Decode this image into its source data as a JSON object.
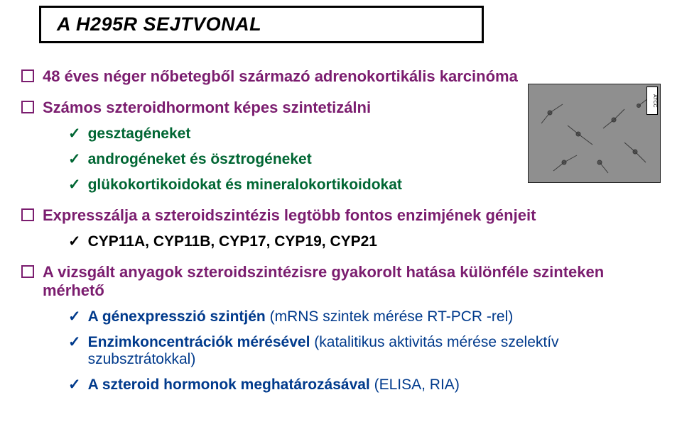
{
  "colors": {
    "title": "#000000",
    "purple": "#7b1d6f",
    "green": "#006633",
    "blue": "#003a8c",
    "black": "#000000"
  },
  "fonts": {
    "title_size": 27,
    "l1_size": 22,
    "l2_size": 21
  },
  "title": "A H295R SEJTVONAL",
  "bullets": [
    {
      "text": "48 éves néger nőbetegből származó adrenokortikális karcinóma",
      "color": "purple"
    },
    {
      "text": "Számos szteroidhormont képes szintetizálni",
      "color": "purple",
      "children": [
        {
          "text": "gesztagéneket",
          "color": "green"
        },
        {
          "text": "androgéneket és ösztrogéneket",
          "color": "green"
        },
        {
          "text": "glükokortikoidokat és mineralokortikoidokat",
          "color": "green"
        }
      ]
    },
    {
      "text": "Expresszálja a szteroidszintézis legtöbb fontos enzimjének génjeit",
      "color": "purple",
      "children": [
        {
          "text": "CYP11A, CYP11B, CYP17, CYP19, CYP21",
          "color": "black"
        }
      ]
    },
    {
      "text": "A vizsgált anyagok szteroidszintézisre gyakorolt hatása különféle szinteken mérhető",
      "color": "purple",
      "children": [
        {
          "text": "A génexpresszió szintjén",
          "paren": "(mRNS szintek mérése RT-PCR -rel)",
          "color": "blue"
        },
        {
          "text": "Enzimkoncentrációk mérésével",
          "paren": "(katalitikus aktivitás mérése szelektív szubsztrátokkal)",
          "color": "blue"
        },
        {
          "text": "A szteroid hormonok meghatározásával",
          "paren": "(ELISA, RIA)",
          "color": "blue"
        }
      ]
    }
  ],
  "image_label": "ATCC"
}
